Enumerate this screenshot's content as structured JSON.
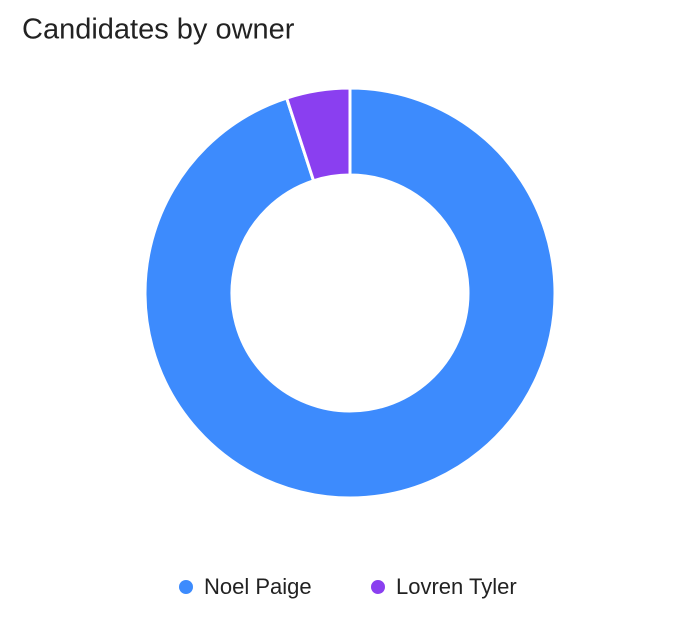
{
  "chart_data": {
    "type": "donut",
    "title": "Candidates by owner",
    "categories": [
      "Noel Paige",
      "Lovren Tyler"
    ],
    "values": [
      95,
      5
    ],
    "colors": [
      "#3d8bfd",
      "#8a3ff0"
    ],
    "legend": "bottom"
  }
}
